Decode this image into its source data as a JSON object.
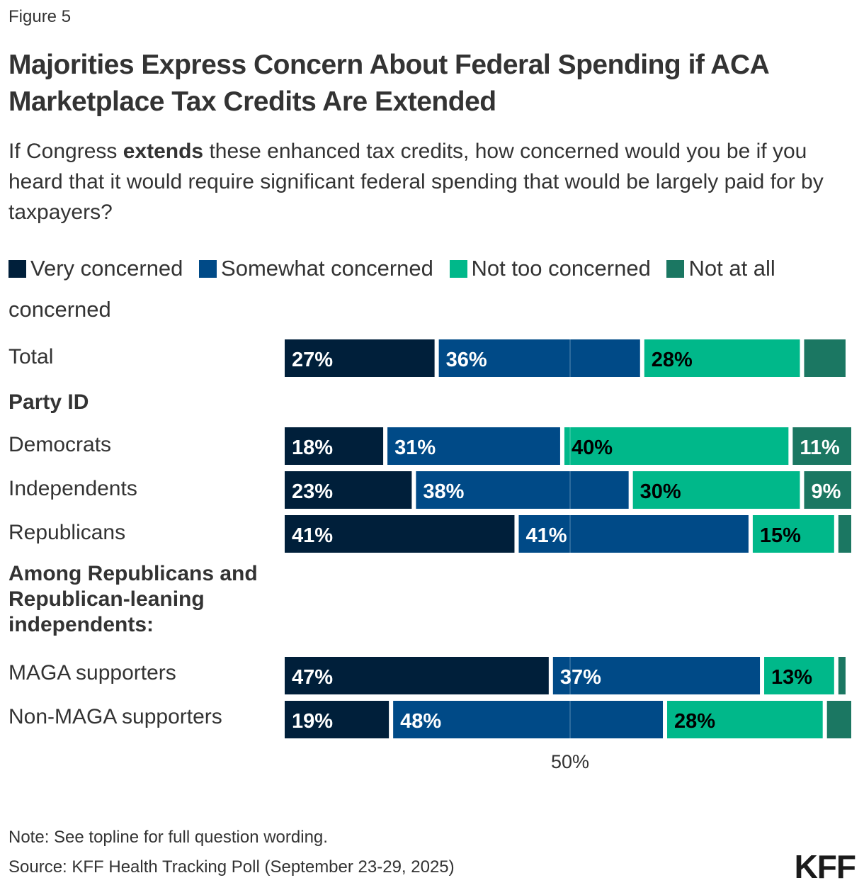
{
  "figure_label": "Figure 5",
  "chart_data": {
    "type": "bar",
    "orientation": "horizontal-stacked",
    "title": "Majorities Express Concern About Federal Spending if ACA Marketplace Tax Credits Are Extended",
    "subtitle_parts": [
      "If Congress ",
      "extends",
      " these enhanced tax credits, how concerned would you be if you heard that it would require significant federal spending that would be largely paid for by taxpayers?"
    ],
    "legend": [
      {
        "name": "Very concerned",
        "color": "#001f3a"
      },
      {
        "name": "Somewhat concerned",
        "color": "#004a87"
      },
      {
        "name": "Not too concerned",
        "color": "#00b88a"
      },
      {
        "name": "Not at all concerned",
        "color": "#1b7762"
      }
    ],
    "legend_placement": "top",
    "xlim": [
      0,
      100
    ],
    "x_tick_labels": [
      "50%"
    ],
    "categories": [
      "Total",
      "Democrats",
      "Independents",
      "Republicans",
      "MAGA supporters",
      "Non-MAGA supporters"
    ],
    "group_headers": [
      {
        "label": "Party ID",
        "before": "Democrats"
      },
      {
        "label": "Among Republicans and Republican-leaning independents:",
        "before": "MAGA supporters"
      }
    ],
    "series": [
      {
        "name": "Very concerned",
        "values": [
          27,
          18,
          23,
          41,
          47,
          19
        ],
        "labels": [
          "27%",
          "18%",
          "23%",
          "41%",
          "47%",
          "19%"
        ]
      },
      {
        "name": "Somewhat concerned",
        "values": [
          36,
          31,
          38,
          41,
          37,
          48
        ],
        "labels": [
          "36%",
          "31%",
          "38%",
          "41%",
          "37%",
          "48%"
        ]
      },
      {
        "name": "Not too concerned",
        "values": [
          28,
          40,
          30,
          15,
          13,
          28
        ],
        "labels": [
          "28%",
          "40%",
          "30%",
          "15%",
          "13%",
          "28%"
        ]
      },
      {
        "name": "Not at all concerned",
        "values": [
          8,
          11,
          9,
          3,
          2,
          5
        ],
        "labels": [
          "",
          "11%",
          "9%",
          "",
          "",
          ""
        ]
      }
    ],
    "label_colors": [
      "#ffffff",
      "#ffffff",
      "#000000",
      "#ffffff"
    ]
  },
  "note": "Note: See topline for full question wording.",
  "source": "Source: KFF Health Tracking Poll (September 23-29, 2025)",
  "logo": "KFF"
}
